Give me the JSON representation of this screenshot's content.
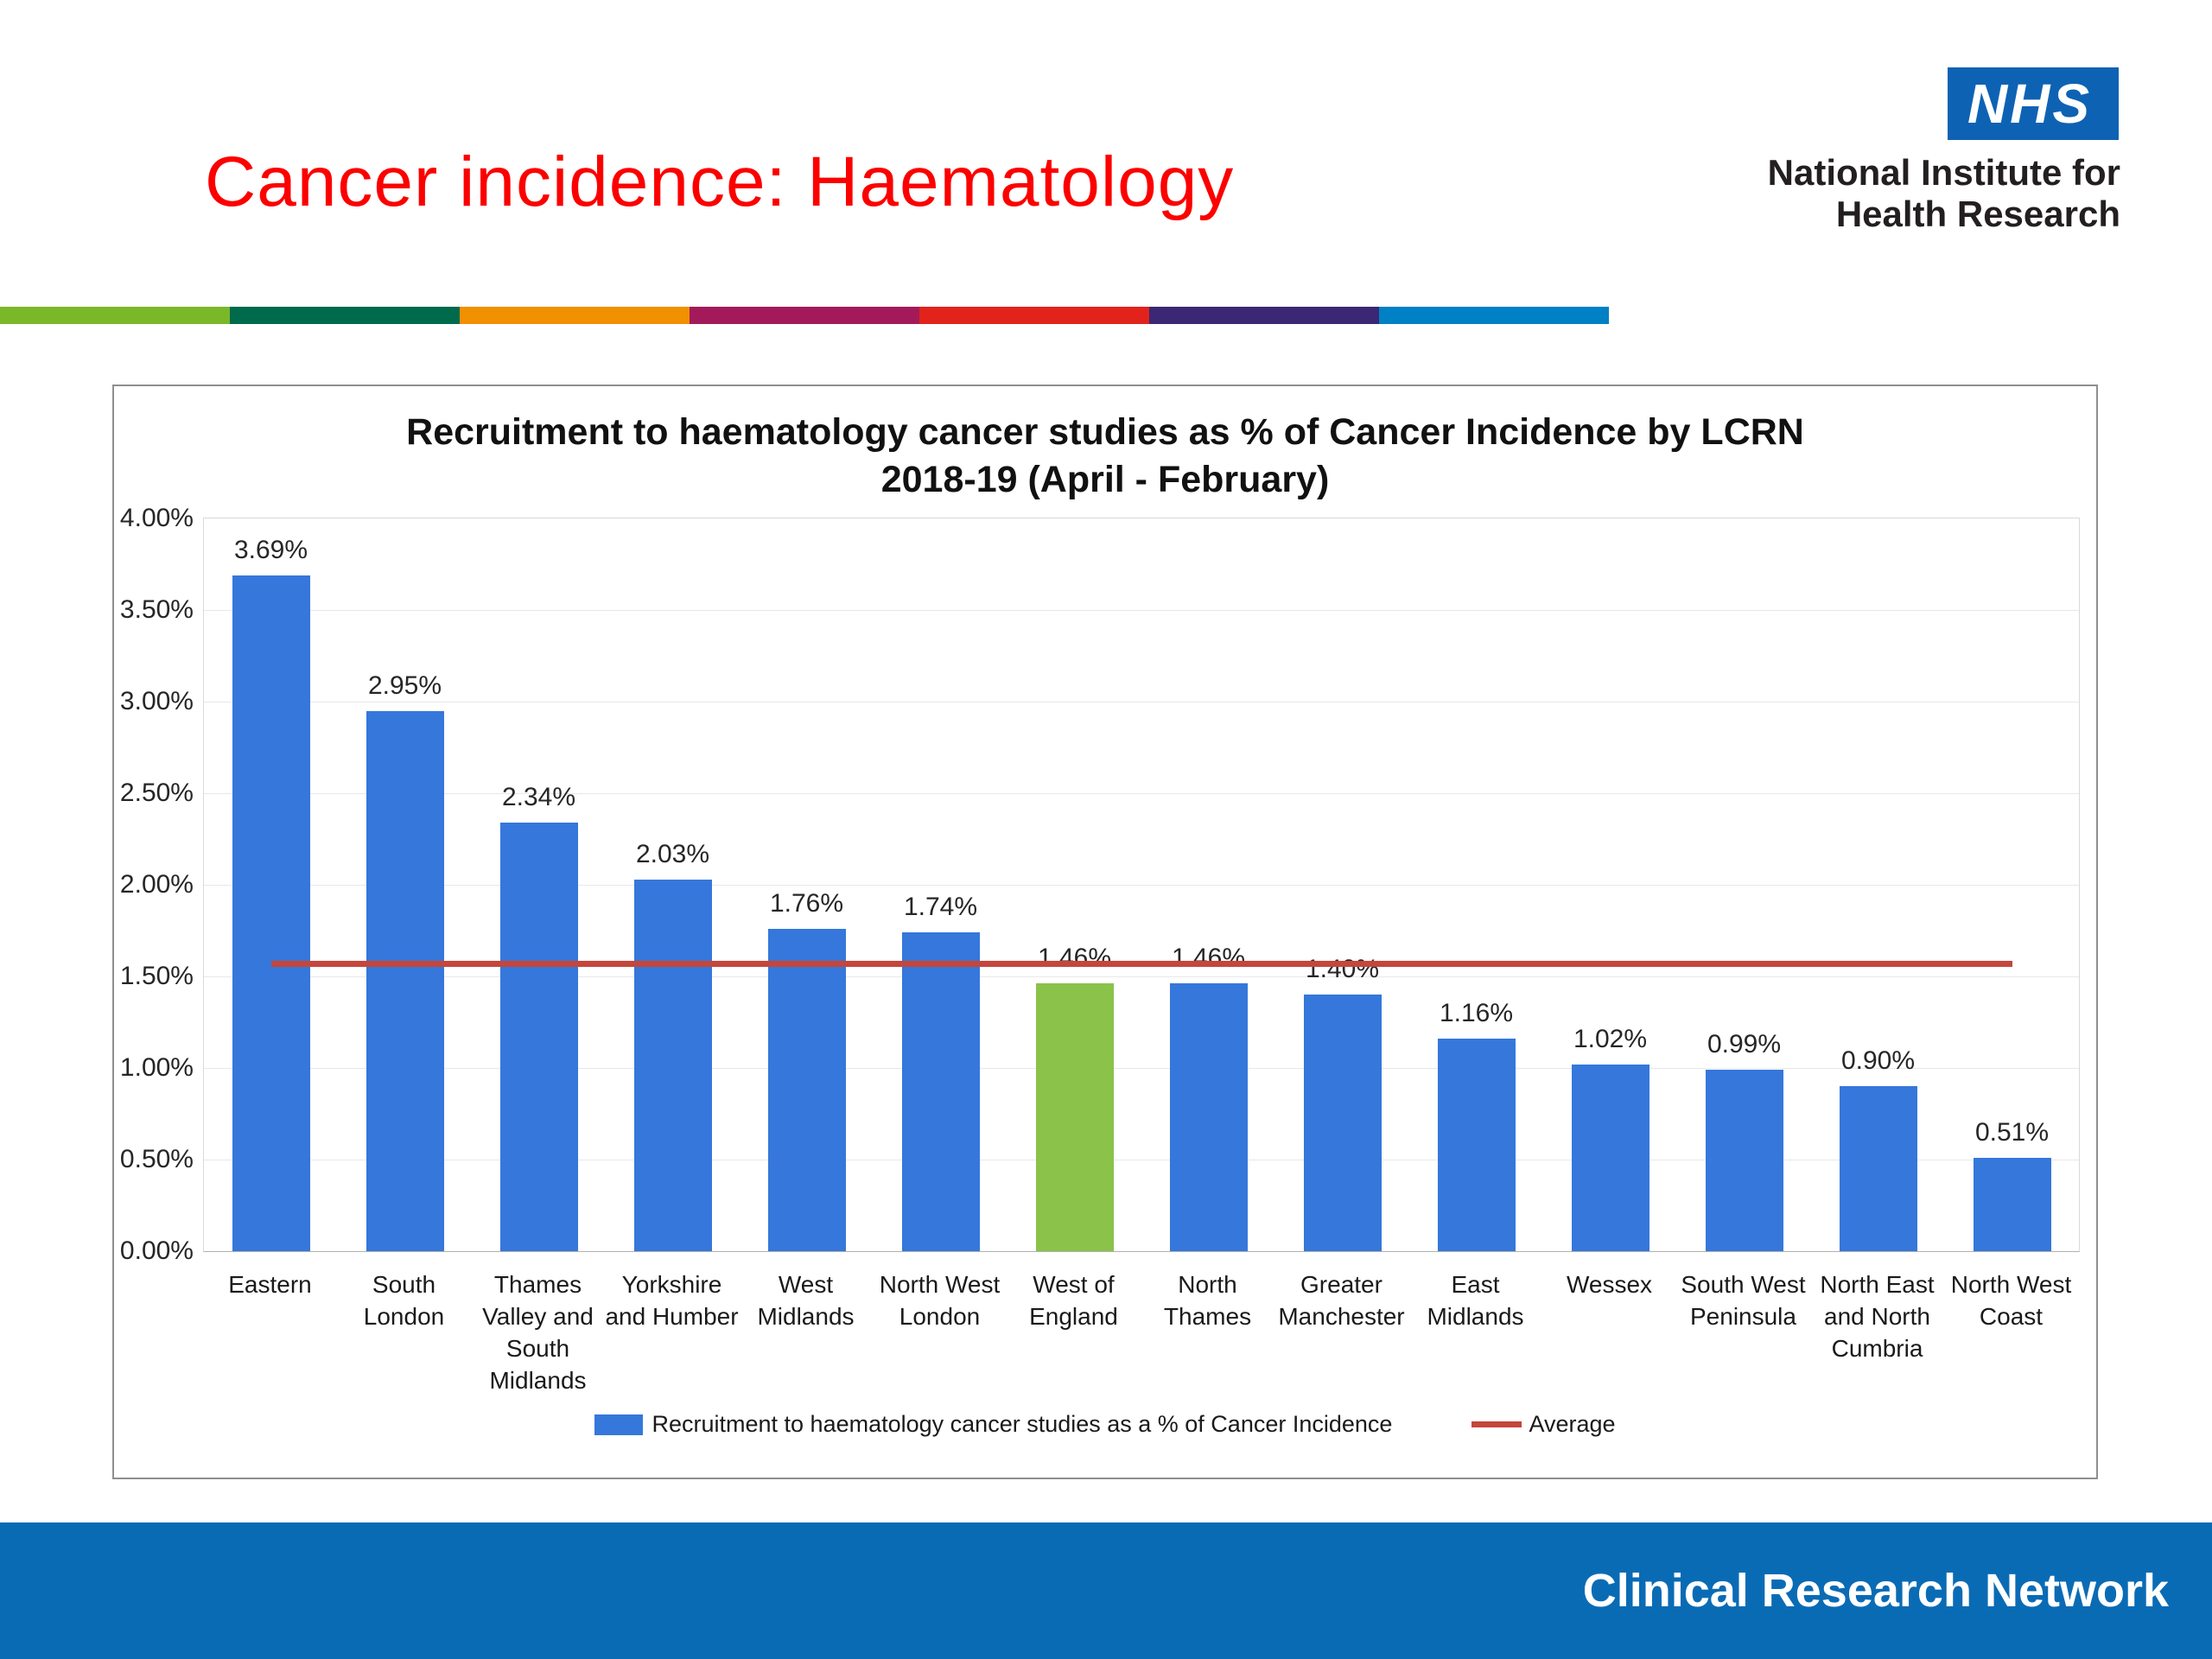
{
  "slide": {
    "title": "Cancer incidence: Haematology"
  },
  "header": {
    "nhs_logo": "NHS",
    "org_name_line1": "National Institute for",
    "org_name_line2": "Health Research"
  },
  "accent_stripe_colors": [
    "#7AB829",
    "#006A4C",
    "#F19000",
    "#A31A5B",
    "#E2231B",
    "#3B2774",
    "#0080C5"
  ],
  "colors": {
    "slide_title": "#FC0000",
    "nhs_blue": "#0E62B4",
    "org_text": "#231F20",
    "footer_bar": "#0A6BB5"
  },
  "chart_data": {
    "type": "bar",
    "title": "Recruitment to haematology cancer studies as % of Cancer Incidence by LCRN",
    "subtitle": "2018-19 (April - February)",
    "categories": [
      "Eastern",
      "South\nLondon",
      "Thames\nValley and\nSouth\nMidlands",
      "Yorkshire\nand Humber",
      "West\nMidlands",
      "North West\nLondon",
      "West of\nEngland",
      "North\nThames",
      "Greater\nManchester",
      "East\nMidlands",
      "Wessex",
      "South West\nPeninsula",
      "North East\nand North\nCumbria",
      "North West\nCoast"
    ],
    "values": [
      3.69,
      2.95,
      2.34,
      2.03,
      1.76,
      1.74,
      1.46,
      1.46,
      1.4,
      1.16,
      1.02,
      0.99,
      0.9,
      0.51
    ],
    "value_labels": [
      "3.69%",
      "2.95%",
      "2.34%",
      "2.03%",
      "1.76%",
      "1.74%",
      "1.46%",
      "1.46%",
      "1.40%",
      "1.16%",
      "1.02%",
      "0.99%",
      "0.90%",
      "0.51%"
    ],
    "bar_color": "#3577DB",
    "highlight_index": 6,
    "highlight_color": "#8AC24A",
    "average_value": 1.57,
    "average_color": "#C4463C",
    "ylim": [
      0,
      4
    ],
    "ytick_step": 0.5,
    "ytick_labels": [
      "0.00%",
      "0.50%",
      "1.00%",
      "1.50%",
      "2.00%",
      "2.50%",
      "3.00%",
      "3.50%",
      "4.00%"
    ],
    "grid": true,
    "legend_position": "bottom",
    "legend": {
      "series_label": "Recruitment to haematology cancer studies as a % of Cancer Incidence",
      "average_label": "Average"
    }
  },
  "footer": {
    "label": "Clinical Research Network"
  }
}
